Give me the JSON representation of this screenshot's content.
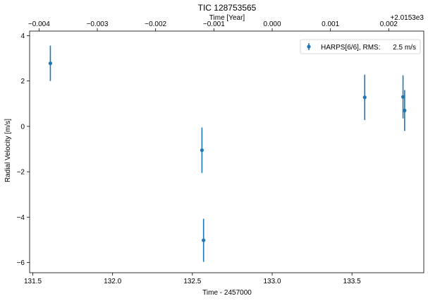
{
  "chart_data": {
    "type": "scatter",
    "title": "TIC 128753565",
    "xlabel": "Time - 2457000",
    "ylabel": "Radial Velocity [m/s]",
    "top_xlabel": "Time [Year]",
    "top_offset_label": "+2.0153e3",
    "xlim": [
      131.48,
      133.95
    ],
    "ylim": [
      -6.45,
      4.2
    ],
    "x_ticks": [
      131.5,
      132.0,
      132.5,
      133.0,
      133.5
    ],
    "x_tick_labels": [
      "131.5",
      "132.0",
      "132.5",
      "133.0",
      "133.5"
    ],
    "y_ticks": [
      -6,
      -4,
      -2,
      0,
      2,
      4
    ],
    "y_tick_labels": [
      "−6",
      "−4",
      "−2",
      "0",
      "2",
      "4"
    ],
    "top_ticks": [
      -0.004,
      -0.003,
      -0.002,
      -0.001,
      0.0,
      0.001,
      0.002
    ],
    "top_tick_labels": [
      "−0.004",
      "−0.003",
      "−0.002",
      "−0.001",
      "0.000",
      "0.001",
      "0.002"
    ],
    "top_axis": {
      "x_at_zero": 133.0,
      "x_per_unit": 365.25
    },
    "grid": false,
    "legend_position": "top-right",
    "series": [
      {
        "name": "HARPS[6/6], RMS:",
        "rms_value": "2.5 m/s",
        "color": "#1f77b4",
        "points": [
          {
            "x": 131.61,
            "y": 2.78,
            "err": 0.78
          },
          {
            "x": 132.56,
            "y": -1.05,
            "err": 1.0
          },
          {
            "x": 132.57,
            "y": -5.02,
            "err": 0.95
          },
          {
            "x": 133.58,
            "y": 1.28,
            "err": 1.0
          },
          {
            "x": 133.82,
            "y": 1.3,
            "err": 0.95
          },
          {
            "x": 133.83,
            "y": 0.7,
            "err": 0.9
          }
        ]
      }
    ]
  }
}
